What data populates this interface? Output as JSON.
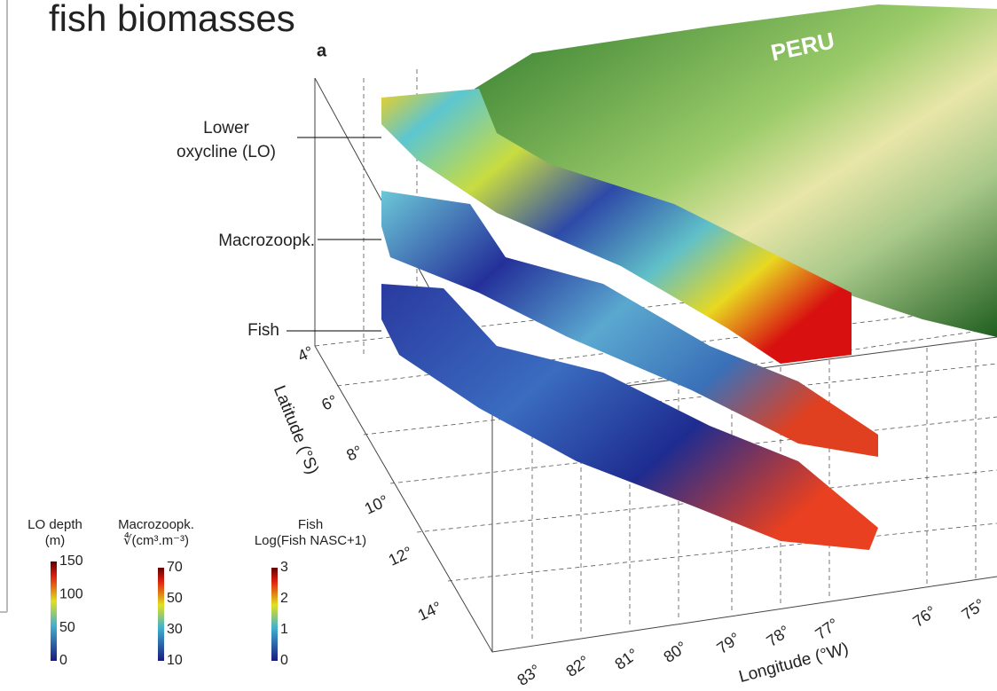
{
  "title": "fish biomasses",
  "panel_label": "a",
  "map_label": "PERU",
  "layer_labels": [
    "Lower",
    "oxycline (LO)",
    "Macrozoopk.",
    "Fish"
  ],
  "latitude": {
    "label": "Latitude (°S)",
    "ticks": [
      "4°",
      "6°",
      "8°",
      "10°",
      "12°",
      "14°"
    ]
  },
  "longitude": {
    "label": "Longitude (°W)",
    "ticks": [
      "83°",
      "82°",
      "81°",
      "80°",
      "79°",
      "78°",
      "77°",
      "76°",
      "75°"
    ]
  },
  "colorbars": [
    {
      "title": [
        "LO depth",
        "(m)"
      ],
      "ticks": [
        "150",
        "100",
        "50",
        "0"
      ]
    },
    {
      "title": [
        "Macrozoopk.",
        "∜(cm³.m⁻³)"
      ],
      "ticks": [
        "70",
        "50",
        "30",
        "10"
      ]
    },
    {
      "title": [
        "Fish",
        "Log(Fish NASC+1)"
      ],
      "ticks": [
        "3",
        "2",
        "1",
        "0"
      ]
    }
  ]
}
